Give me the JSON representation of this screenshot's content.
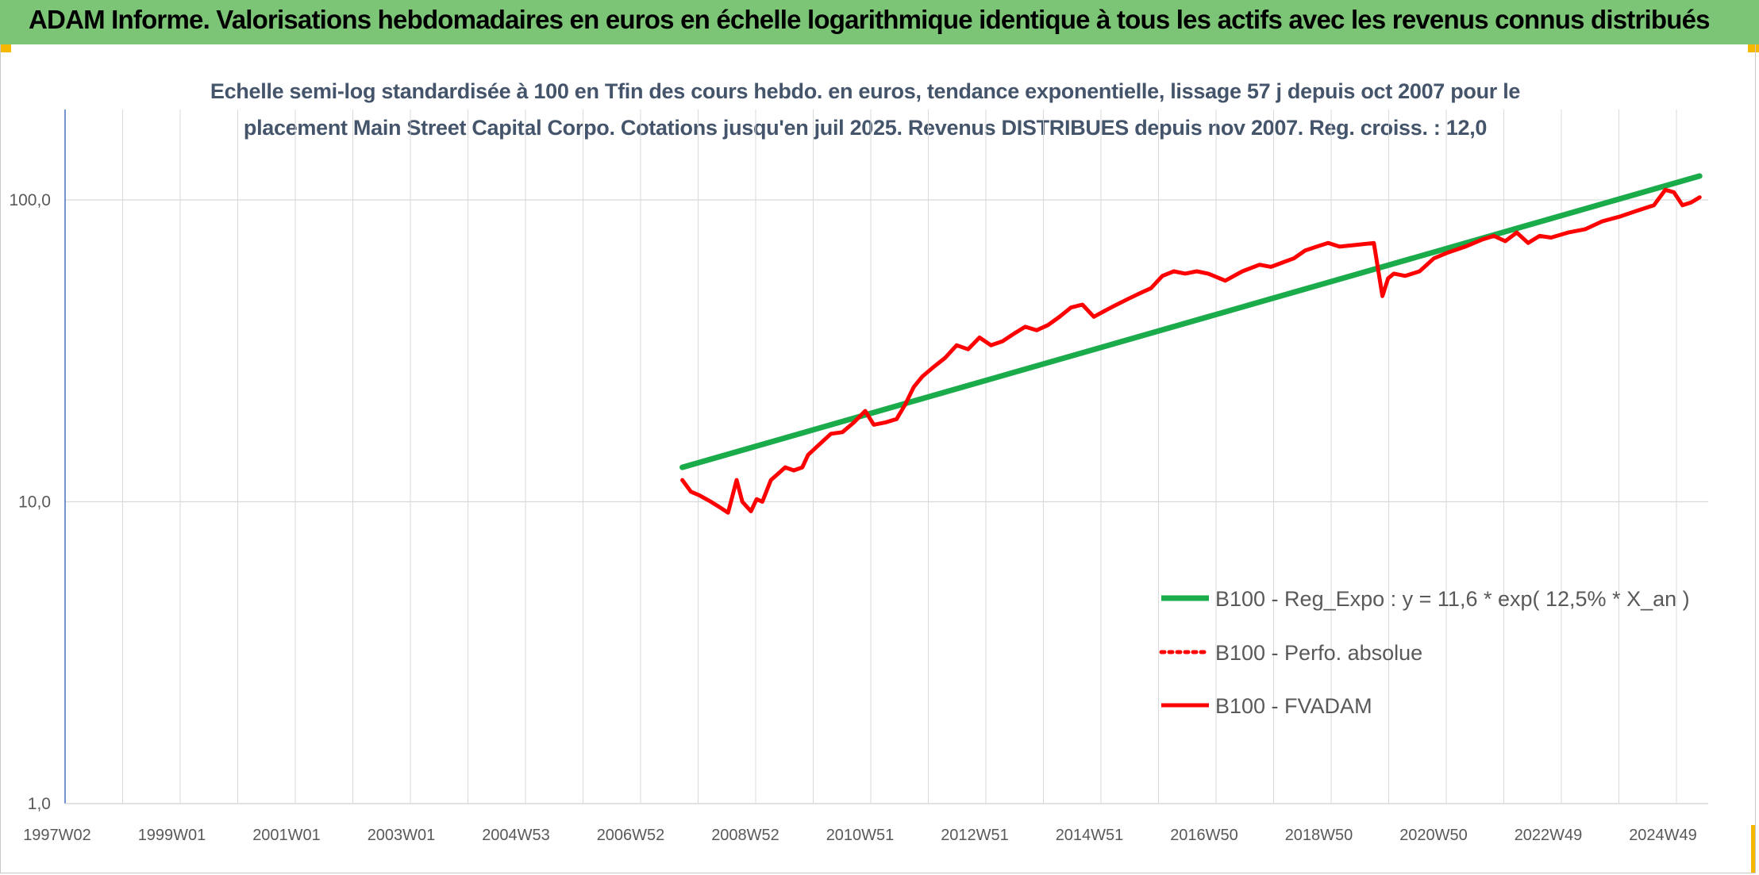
{
  "banner": {
    "title": "ADAM Informe. Valorisations hebdomadaires en euros en échelle logarithmique identique à tous les actifs avec les revenus connus distribués"
  },
  "chart_data": {
    "type": "line",
    "title_line1": "Echelle semi-log standardisée à 100 en Tfin des cours hebdo. en euros, tendance exponentielle, lissage 57 j depuis oct 2007 pour le",
    "title_line2": "placement Main Street Capital Corpo. Cotations jusqu'en juil 2025. Revenus DISTRIBUES depuis nov 2007. Reg. croiss. : 12,0",
    "y_scale": "log",
    "ylim": [
      1,
      200
    ],
    "xlim": [
      1997.0,
      2025.75
    ],
    "y_ticks": [
      "1,0",
      "10,0",
      "100,0"
    ],
    "x_ticks": [
      "1997W02",
      "1999W01",
      "2001W01",
      "2003W01",
      "2004W53",
      "2006W52",
      "2008W52",
      "2010W51",
      "2012W51",
      "2014W51",
      "2016W50",
      "2018W50",
      "2020W50",
      "2022W49",
      "2024W49"
    ],
    "grid": true,
    "legend_position": "bottom-right",
    "colors": {
      "regression": "#1aab4b",
      "perf_absolue": "#ff0000",
      "fvadam": "#ff0000"
    },
    "series": [
      {
        "name": "B100 - Reg_Expo : y = 11,6 * exp( 12,5% *  X_an )",
        "style": "solid",
        "x": [
          2007.8,
          2025.6
        ],
        "y": [
          13.0,
          120.0
        ]
      },
      {
        "name": "B100 - Perfo. absolue",
        "style": "dotted",
        "x": [],
        "y": []
      },
      {
        "name": "B100 - FVADAM",
        "style": "solid",
        "x": [
          2007.8,
          2007.95,
          2008.1,
          2008.3,
          2008.45,
          2008.6,
          2008.75,
          2008.85,
          2009.0,
          2009.1,
          2009.2,
          2009.35,
          2009.5,
          2009.6,
          2009.75,
          2009.9,
          2010.0,
          2010.2,
          2010.4,
          2010.6,
          2010.8,
          2011.0,
          2011.15,
          2011.35,
          2011.55,
          2011.7,
          2011.85,
          2012.0,
          2012.2,
          2012.4,
          2012.6,
          2012.8,
          2013.0,
          2013.2,
          2013.4,
          2013.6,
          2013.8,
          2014.0,
          2014.2,
          2014.4,
          2014.6,
          2014.8,
          2015.0,
          2015.2,
          2015.4,
          2015.6,
          2015.8,
          2016.0,
          2016.2,
          2016.4,
          2016.6,
          2016.8,
          2017.0,
          2017.3,
          2017.6,
          2017.9,
          2018.1,
          2018.3,
          2018.5,
          2018.7,
          2018.9,
          2019.1,
          2019.3,
          2019.6,
          2019.9,
          2020.05,
          2020.15,
          2020.25,
          2020.45,
          2020.7,
          2020.95,
          2021.2,
          2021.5,
          2021.8,
          2022.0,
          2022.2,
          2022.4,
          2022.6,
          2022.8,
          2023.0,
          2023.3,
          2023.6,
          2023.9,
          2024.2,
          2024.5,
          2024.8,
          2025.0,
          2025.15,
          2025.3,
          2025.45,
          2025.6
        ],
        "y": [
          11.8,
          10.8,
          10.5,
          10.0,
          9.6,
          9.2,
          11.8,
          10.0,
          9.3,
          10.2,
          10.0,
          11.8,
          12.5,
          13.0,
          12.7,
          13.0,
          14.3,
          15.5,
          16.8,
          17.0,
          18.3,
          20.0,
          18.0,
          18.3,
          18.8,
          21.0,
          24.0,
          26.0,
          28.0,
          30.0,
          33.0,
          32.0,
          35.0,
          33.0,
          34.0,
          36.0,
          38.0,
          37.0,
          38.5,
          41.0,
          44.0,
          45.0,
          41.0,
          43.0,
          45.0,
          47.0,
          49.0,
          51.0,
          56.0,
          58.0,
          57.0,
          58.0,
          57.0,
          54.0,
          58.0,
          61.0,
          60.0,
          62.0,
          64.0,
          68.0,
          70.0,
          72.0,
          70.0,
          71.0,
          72.0,
          48.0,
          55.0,
          57.0,
          56.0,
          58.0,
          64.0,
          67.0,
          70.0,
          74.0,
          76.0,
          73.0,
          78.0,
          72.0,
          76.0,
          75.0,
          78.0,
          80.0,
          85.0,
          88.0,
          92.0,
          96.0,
          108.0,
          106.0,
          96.0,
          98.0,
          102.0
        ]
      }
    ]
  }
}
